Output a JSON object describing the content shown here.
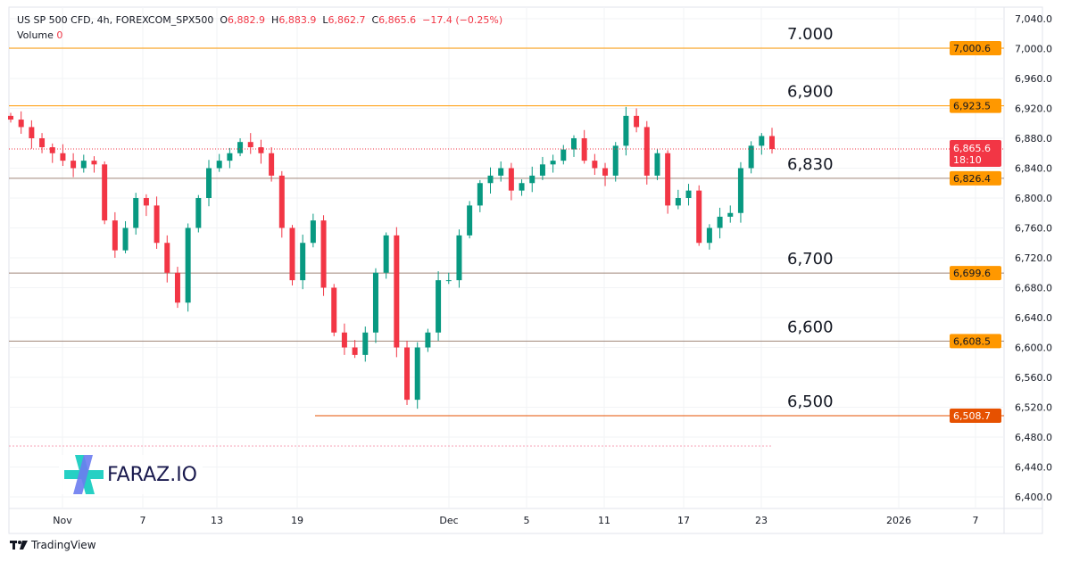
{
  "header": {
    "symbol": "US SP 500 CFD, 4h, FOREXCOM_SPX500",
    "o_label": "O",
    "o": "6,882.9",
    "h_label": "H",
    "h": "6,883.9",
    "l_label": "L",
    "l": "6,862.7",
    "c_label": "C",
    "c": "6,865.6",
    "change": "−17.4 (−0.25%)",
    "volume_label": "Volume",
    "volume": "0"
  },
  "branding": {
    "tradingview": "TradingView",
    "watermark": "FARAZ.IO"
  },
  "chart_data": {
    "type": "candlestick",
    "ylim": [
      6380,
      7060
    ],
    "y_ticks": [
      7040,
      7000,
      6960,
      6920,
      6880,
      6840,
      6800,
      6760,
      6720,
      6680,
      6640,
      6600,
      6560,
      6520,
      6480,
      6440,
      6400
    ],
    "y_tick_labels": [
      "7,040.0",
      "7,000.0",
      "6,960.0",
      "6,920.0",
      "6,880.0",
      "6,840.0",
      "6,800.0",
      "6,760.0",
      "6,720.0",
      "6,680.0",
      "6,640.0",
      "6,600.0",
      "6,560.0",
      "6,520.0",
      "6,480.0",
      "6,440.0",
      "6,400.0"
    ],
    "x_ticks": [
      "Nov",
      "7",
      "13",
      "19",
      "Dec",
      "5",
      "11",
      "17",
      "23",
      "2026",
      "7"
    ],
    "closes": [
      6905,
      6895,
      6880,
      6868,
      6860,
      6850,
      6840,
      6850,
      6845,
      6770,
      6730,
      6760,
      6800,
      6790,
      6740,
      6700,
      6660,
      6760,
      6800,
      6840,
      6850,
      6860,
      6875,
      6868,
      6860,
      6830,
      6760,
      6690,
      6740,
      6770,
      6680,
      6620,
      6600,
      6590,
      6620,
      6700,
      6750,
      6600,
      6530,
      6600,
      6620,
      6690,
      6690,
      6750,
      6790,
      6820,
      6830,
      6840,
      6810,
      6820,
      6830,
      6845,
      6850,
      6865,
      6880,
      6850,
      6840,
      6830,
      6870,
      6910,
      6895,
      6830,
      6860,
      6790,
      6800,
      6810,
      6740,
      6760,
      6775,
      6780,
      6840,
      6870,
      6883,
      6865.6
    ],
    "last_price": {
      "value": "6,865.6",
      "countdown": "18:10",
      "color": "#f23645"
    },
    "levels": [
      {
        "value": 7000.6,
        "label": "7,000.6",
        "annotation": "7.000",
        "color": "#ff9800"
      },
      {
        "value": 6923.5,
        "label": "6,923.5",
        "annotation": "6,900",
        "color": "#ff9800"
      },
      {
        "value": 6826.4,
        "label": "6,826.4",
        "annotation": "6,830",
        "color": "#ff9800"
      },
      {
        "value": 6699.6,
        "label": "6,699.6",
        "annotation": "6,700",
        "color": "#ff9800"
      },
      {
        "value": 6608.5,
        "label": "6,608.5",
        "annotation": "6,600",
        "color": "#ff9800"
      },
      {
        "value": 6508.7,
        "label": "6,508.7",
        "annotation": "6,500",
        "color": "#e65100"
      }
    ],
    "colors": {
      "up": "#089981",
      "down": "#f23645"
    }
  }
}
